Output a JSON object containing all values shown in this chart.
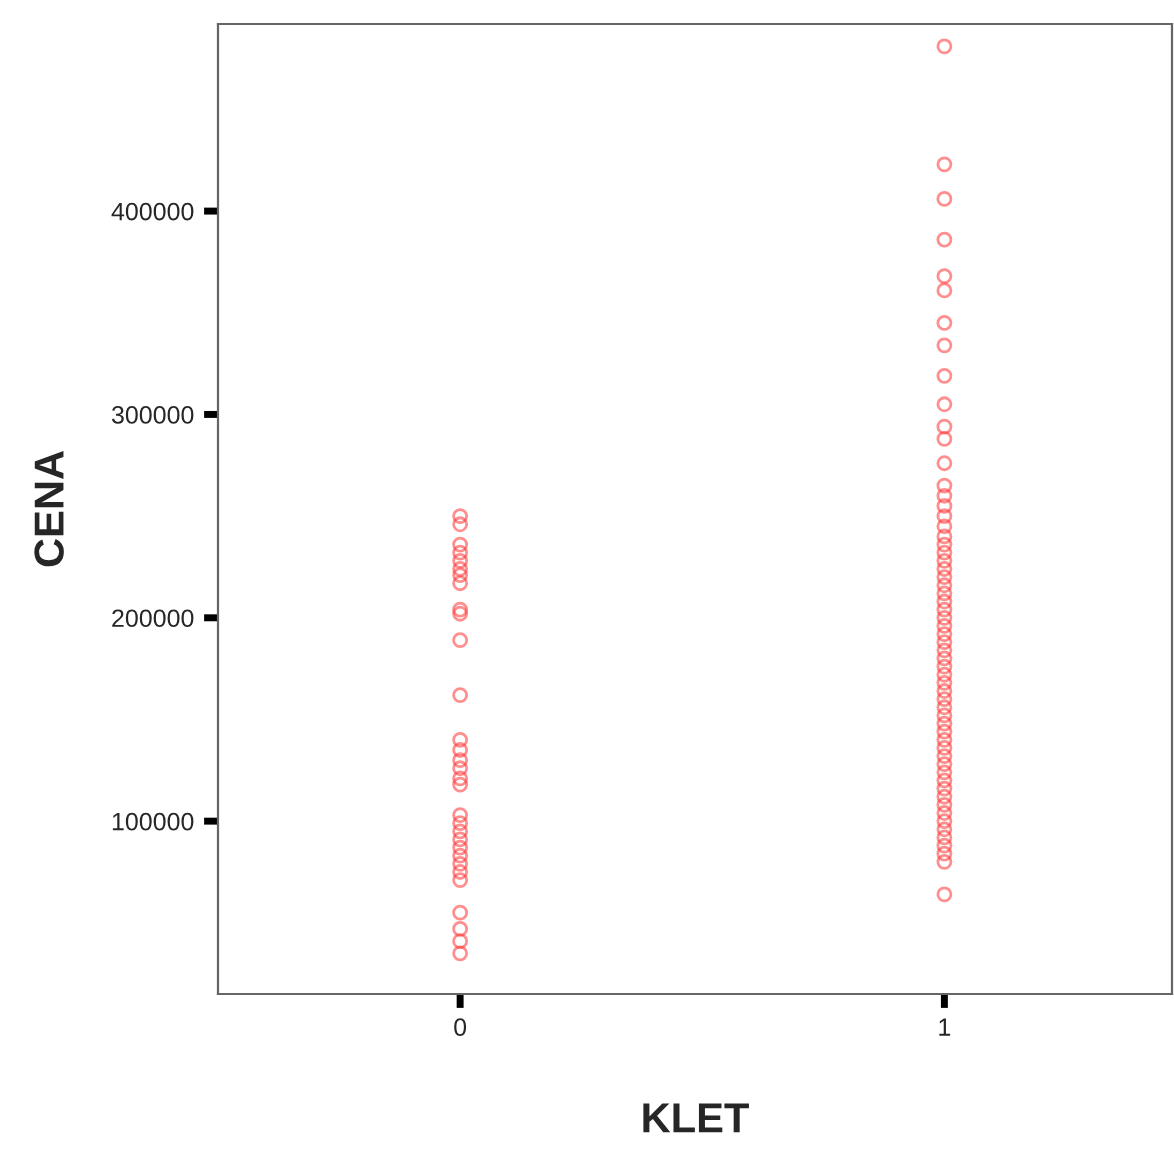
{
  "chart_data": {
    "type": "scatter",
    "xlabel": "KLET",
    "ylabel": "CENA",
    "categories": [
      "0",
      "1"
    ],
    "ylim": [
      15000,
      492000
    ],
    "yticks": [
      100000,
      200000,
      300000,
      400000
    ],
    "grid": false,
    "marker": "circle",
    "series": [
      {
        "color": "#ff3333",
        "x": [
          "0",
          "0",
          "0",
          "0",
          "0",
          "0",
          "0",
          "0",
          "0",
          "0",
          "0",
          "0",
          "0",
          "0",
          "0",
          "0",
          "0",
          "0",
          "0",
          "0",
          "0",
          "0",
          "0",
          "0",
          "0",
          "0",
          "0",
          "0",
          "0",
          "0",
          "0"
        ],
        "values": [
          250000,
          246000,
          236000,
          232000,
          228000,
          224000,
          221000,
          217000,
          204000,
          202000,
          189000,
          162000,
          140000,
          135000,
          130000,
          126000,
          121000,
          118000,
          103000,
          99000,
          95000,
          91000,
          87000,
          83000,
          79000,
          75000,
          71000,
          55000,
          47000,
          41000,
          35000
        ]
      },
      {
        "color": "#ff3333",
        "x": [
          "1",
          "1",
          "1",
          "1",
          "1",
          "1",
          "1",
          "1",
          "1",
          "1",
          "1",
          "1",
          "1",
          "1",
          "1",
          "1",
          "1",
          "1",
          "1",
          "1",
          "1",
          "1",
          "1",
          "1",
          "1",
          "1",
          "1",
          "1",
          "1",
          "1",
          "1",
          "1",
          "1",
          "1",
          "1",
          "1",
          "1",
          "1",
          "1",
          "1",
          "1",
          "1",
          "1",
          "1",
          "1",
          "1",
          "1",
          "1",
          "1",
          "1",
          "1",
          "1",
          "1",
          "1",
          "1",
          "1",
          "1",
          "1",
          "1",
          "1"
        ],
        "values": [
          481000,
          423000,
          406000,
          386000,
          368000,
          361000,
          345000,
          334000,
          319000,
          305000,
          294000,
          288000,
          276000,
          265000,
          260000,
          255000,
          250000,
          245000,
          240000,
          236000,
          232000,
          228000,
          224000,
          220000,
          216000,
          212000,
          208000,
          204000,
          200000,
          196000,
          192000,
          188000,
          184000,
          180000,
          176000,
          172000,
          168000,
          164000,
          160000,
          156000,
          152000,
          148000,
          144000,
          140000,
          136000,
          132000,
          128000,
          124000,
          120000,
          116000,
          112000,
          108000,
          104000,
          100000,
          96000,
          92000,
          88000,
          84000,
          80000,
          64000
        ]
      }
    ]
  }
}
